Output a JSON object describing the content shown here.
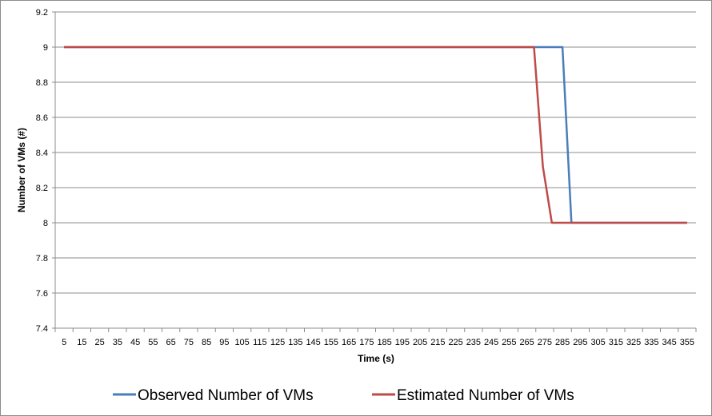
{
  "chart_data": {
    "type": "line",
    "title": "",
    "xlabel": "Time (s)",
    "ylabel": "Number of VMs (#)",
    "x": [
      5,
      15,
      25,
      35,
      45,
      55,
      65,
      75,
      85,
      95,
      105,
      115,
      125,
      135,
      145,
      155,
      165,
      175,
      185,
      195,
      205,
      215,
      225,
      235,
      245,
      255,
      265,
      275,
      285,
      295,
      305,
      315,
      325,
      335,
      345,
      355
    ],
    "ylim": [
      7.4,
      9.2
    ],
    "yticks": [
      "7.4",
      "7.6",
      "7.8",
      "8",
      "8.2",
      "8.4",
      "8.6",
      "8.8",
      "9",
      "9.2"
    ],
    "grid": true,
    "legend_position": "bottom",
    "series": [
      {
        "name": "Observed Number of VMs",
        "color": "#4a7ebb",
        "points": [
          [
            5,
            9
          ],
          [
            285,
            9
          ],
          [
            290,
            8
          ],
          [
            355,
            8
          ]
        ]
      },
      {
        "name": "Estimated Number of VMs",
        "color": "#be4b48",
        "points": [
          [
            5,
            9
          ],
          [
            269,
            9
          ],
          [
            274,
            8.32
          ],
          [
            279,
            8
          ],
          [
            355,
            8
          ]
        ]
      }
    ]
  }
}
